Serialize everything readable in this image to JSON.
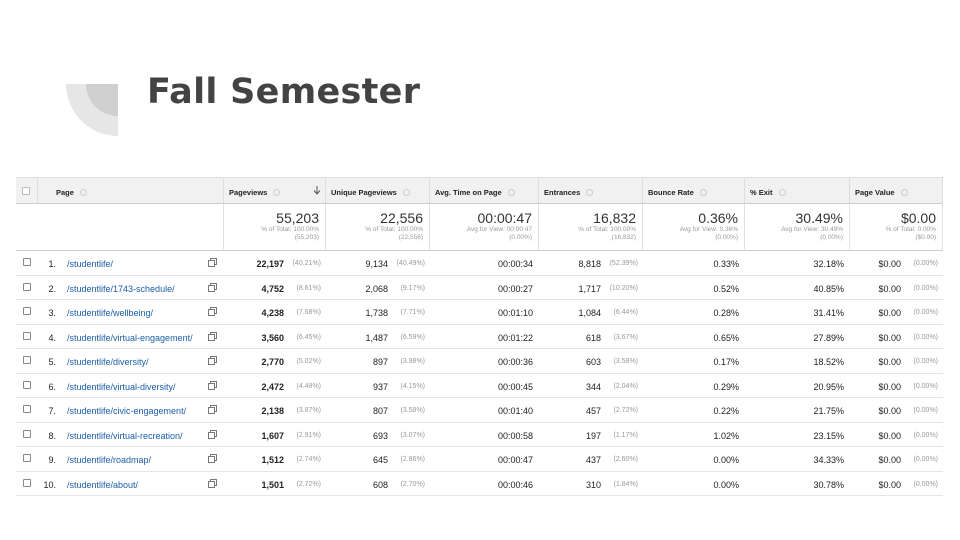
{
  "title": "Fall Semester",
  "table": {
    "columns": [
      "Page",
      "Pageviews",
      "Unique Pageviews",
      "Avg. Time on Page",
      "Entrances",
      "Bounce Rate",
      "% Exit",
      "Page Value"
    ],
    "totals": [
      {
        "value": "55,203",
        "lines": [
          "% of Total: 100.00%",
          "(55,203)"
        ]
      },
      {
        "value": "22,556",
        "lines": [
          "% of Total: 100.00%",
          "(22,556)"
        ]
      },
      {
        "value": "00:00:47",
        "lines": [
          "Avg for View: 00:00:47",
          "(0.00%)"
        ]
      },
      {
        "value": "16,832",
        "lines": [
          "% of Total: 100.00%",
          "(16,832)"
        ]
      },
      {
        "value": "0.36%",
        "lines": [
          "Avg for View: 0.36%",
          "(0.00%)"
        ]
      },
      {
        "value": "30.49%",
        "lines": [
          "Avg for View: 30.49%",
          "(0.00%)"
        ]
      },
      {
        "value": "$0.00",
        "lines": [
          "% of Total: 0.00%",
          "($0.00)"
        ]
      }
    ],
    "rows": [
      {
        "index": "1.",
        "page": "/studentlife/",
        "cells": [
          [
            "22,197",
            "(40.21%)"
          ],
          [
            "9,134",
            "(40.49%)"
          ],
          [
            "00:00:34"
          ],
          [
            "8,818",
            "(52.39%)"
          ],
          [
            "0.33%"
          ],
          [
            "32.18%"
          ],
          [
            "$0.00",
            "(0.00%)"
          ]
        ]
      },
      {
        "index": "2.",
        "page": "/studentlife/1743-schedule/",
        "cells": [
          [
            "4,752",
            "(8.61%)"
          ],
          [
            "2,068",
            "(9.17%)"
          ],
          [
            "00:00:27"
          ],
          [
            "1,717",
            "(10.20%)"
          ],
          [
            "0.52%"
          ],
          [
            "40.85%"
          ],
          [
            "$0.00",
            "(0.00%)"
          ]
        ]
      },
      {
        "index": "3.",
        "page": "/studentlife/wellbeing/",
        "cells": [
          [
            "4,238",
            "(7.68%)"
          ],
          [
            "1,738",
            "(7.71%)"
          ],
          [
            "00:01:10"
          ],
          [
            "1,084",
            "(6.44%)"
          ],
          [
            "0.28%"
          ],
          [
            "31.41%"
          ],
          [
            "$0.00",
            "(0.00%)"
          ]
        ]
      },
      {
        "index": "4.",
        "page": "/studentlife/virtual-engagement/",
        "cells": [
          [
            "3,560",
            "(6.45%)"
          ],
          [
            "1,487",
            "(6.59%)"
          ],
          [
            "00:01:22"
          ],
          [
            "618",
            "(3.67%)"
          ],
          [
            "0.65%"
          ],
          [
            "27.89%"
          ],
          [
            "$0.00",
            "(0.00%)"
          ]
        ]
      },
      {
        "index": "5.",
        "page": "/studentlife/diversity/",
        "cells": [
          [
            "2,770",
            "(5.02%)"
          ],
          [
            "897",
            "(3.98%)"
          ],
          [
            "00:00:36"
          ],
          [
            "603",
            "(3.58%)"
          ],
          [
            "0.17%"
          ],
          [
            "18.52%"
          ],
          [
            "$0.00",
            "(0.00%)"
          ]
        ]
      },
      {
        "index": "6.",
        "page": "/studentlife/virtual-diversity/",
        "cells": [
          [
            "2,472",
            "(4.48%)"
          ],
          [
            "937",
            "(4.15%)"
          ],
          [
            "00:00:45"
          ],
          [
            "344",
            "(2.04%)"
          ],
          [
            "0.29%"
          ],
          [
            "20.95%"
          ],
          [
            "$0.00",
            "(0.00%)"
          ]
        ]
      },
      {
        "index": "7.",
        "page": "/studentlife/civic-engagement/",
        "cells": [
          [
            "2,138",
            "(3.87%)"
          ],
          [
            "807",
            "(3.58%)"
          ],
          [
            "00:01:40"
          ],
          [
            "457",
            "(2.72%)"
          ],
          [
            "0.22%"
          ],
          [
            "21.75%"
          ],
          [
            "$0.00",
            "(0.00%)"
          ]
        ]
      },
      {
        "index": "8.",
        "page": "/studentlife/virtual-recreation/",
        "cells": [
          [
            "1,607",
            "(2.91%)"
          ],
          [
            "693",
            "(3.07%)"
          ],
          [
            "00:00:58"
          ],
          [
            "197",
            "(1.17%)"
          ],
          [
            "1.02%"
          ],
          [
            "23.15%"
          ],
          [
            "$0.00",
            "(0.00%)"
          ]
        ]
      },
      {
        "index": "9.",
        "page": "/studentlife/roadmap/",
        "cells": [
          [
            "1,512",
            "(2.74%)"
          ],
          [
            "645",
            "(2.86%)"
          ],
          [
            "00:00:47"
          ],
          [
            "437",
            "(2.60%)"
          ],
          [
            "0.00%"
          ],
          [
            "34.33%"
          ],
          [
            "$0.00",
            "(0.00%)"
          ]
        ]
      },
      {
        "index": "10.",
        "page": "/studentlife/about/",
        "cells": [
          [
            "1,501",
            "(2.72%)"
          ],
          [
            "608",
            "(2.70%)"
          ],
          [
            "00:00:46"
          ],
          [
            "310",
            "(1.84%)"
          ],
          [
            "0.00%"
          ],
          [
            "30.78%"
          ],
          [
            "$0.00",
            "(0.00%)"
          ]
        ]
      }
    ]
  }
}
